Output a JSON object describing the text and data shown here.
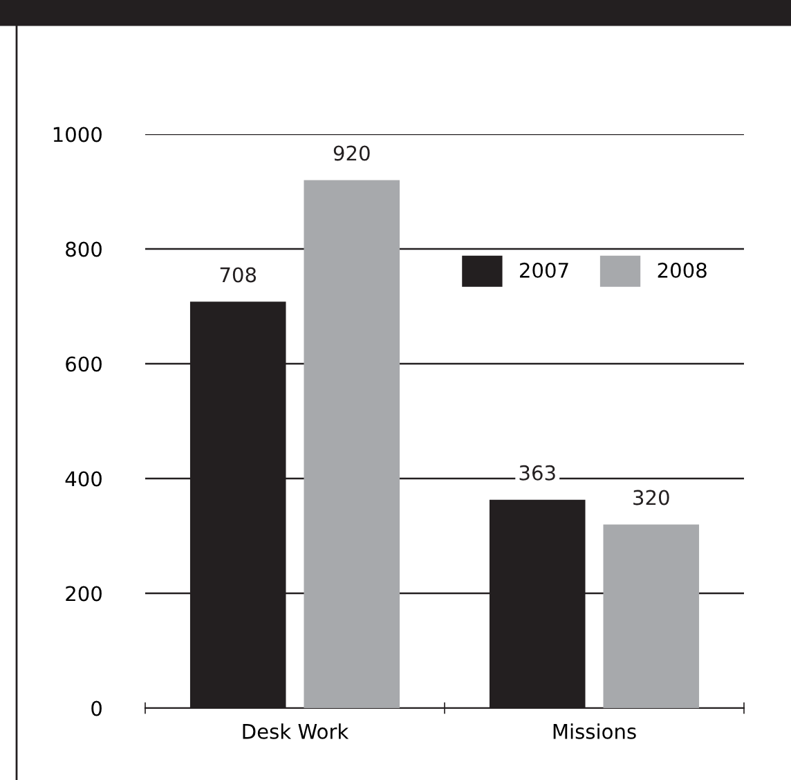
{
  "chart_data": {
    "type": "bar",
    "categories": [
      "Desk Work",
      "Missions"
    ],
    "series": [
      {
        "name": "2007",
        "color": "#231f20",
        "values": [
          708,
          363
        ]
      },
      {
        "name": "2008",
        "color": "#a7a9ac",
        "values": [
          920,
          320
        ]
      }
    ],
    "ylim": [
      0,
      1000
    ],
    "yticks": [
      0,
      200,
      400,
      600,
      800,
      1000
    ],
    "grid": "y",
    "legend": "top right",
    "data_labels": true
  }
}
